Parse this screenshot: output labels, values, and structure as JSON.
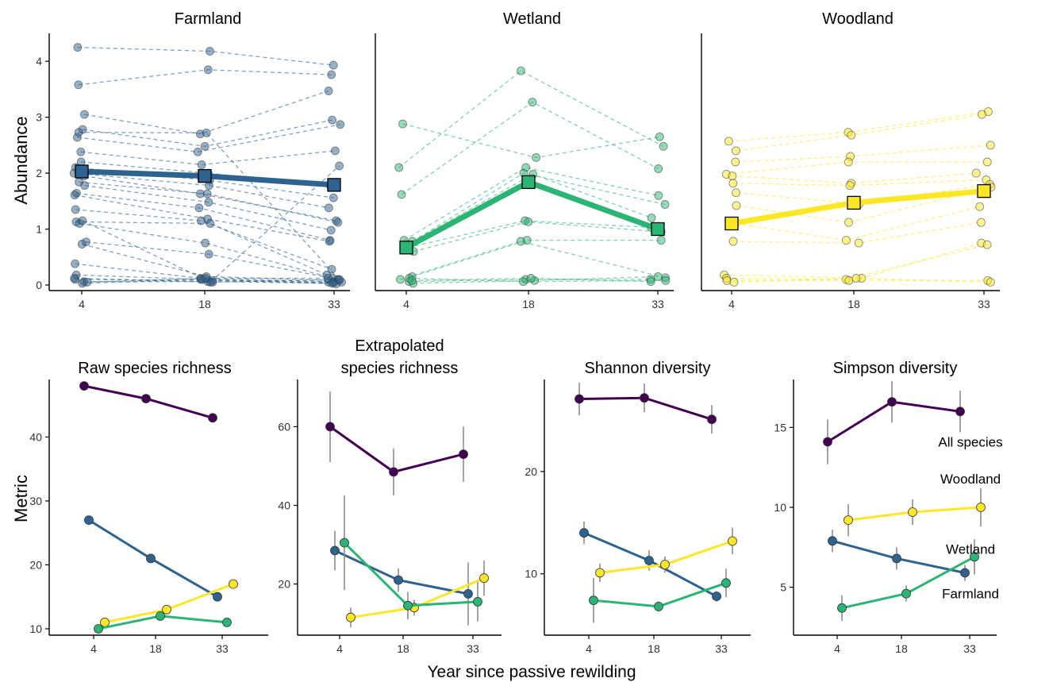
{
  "figure": {
    "top_ylabel": "Abundance",
    "bottom_ylabel": "Metric",
    "bottom_xlabel": "Year since passive rewilding"
  },
  "colors": {
    "Farmland": "#2e6390",
    "Wetland": "#2bb574",
    "Woodland": "#fde725",
    "All species": "#440154",
    "errorbar": "#8c8c8c",
    "axis": "#000000"
  },
  "chart_data": [
    {
      "type": "line",
      "panel": "abundance",
      "title": "Farmland",
      "habitat": "Farmland",
      "x": [
        "4",
        "18",
        "33"
      ],
      "ylim": [
        -0.1,
        4.5
      ],
      "yticks": [
        0,
        1,
        2,
        3,
        4
      ],
      "mean": [
        2.03,
        1.95,
        1.79
      ],
      "species": [
        [
          4.25,
          4.18,
          3.93
        ],
        [
          3.58,
          3.85,
          3.76
        ],
        [
          3.05,
          2.7,
          3.47
        ],
        [
          2.78,
          2.48,
          2.95
        ],
        [
          2.64,
          2.38,
          2.87
        ],
        [
          2.38,
          2.15,
          2.4
        ],
        [
          2.2,
          2.0,
          1.77
        ],
        [
          2.1,
          1.87,
          1.56
        ],
        [
          2.0,
          1.78,
          1.38
        ],
        [
          1.95,
          1.63,
          1.15
        ],
        [
          1.84,
          1.63,
          1.12
        ],
        [
          1.78,
          1.48,
          0.98
        ],
        [
          1.64,
          1.38,
          0.8
        ],
        [
          1.61,
          1.18,
          0.78
        ],
        [
          1.35,
          1.15,
          0.28
        ],
        [
          1.13,
          1.1,
          0.18
        ],
        [
          1.1,
          0.75,
          0.12
        ],
        [
          0.77,
          0.55,
          0.1
        ],
        [
          0.73,
          0.15,
          0.08
        ],
        [
          0.38,
          0.12,
          0.06
        ],
        [
          0.18,
          0.1,
          0.05
        ],
        [
          0.1,
          0.08,
          0.04
        ],
        [
          0.06,
          0.06,
          0.03
        ],
        [
          0.03,
          0.1,
          0.02
        ],
        [
          2.73,
          2.72,
          0.05
        ],
        [
          1.15,
          0.05,
          2.13
        ],
        [
          0.12,
          0.05,
          0.1
        ],
        [
          0.05,
          0.12,
          0.12
        ]
      ]
    },
    {
      "type": "line",
      "panel": "abundance",
      "title": "Wetland",
      "habitat": "Wetland",
      "x": [
        "4",
        "18",
        "33"
      ],
      "ylim": [
        -0.1,
        4.5
      ],
      "yticks": [
        0,
        1,
        2,
        3,
        4
      ],
      "mean": [
        0.67,
        1.84,
        1.0
      ],
      "species": [
        [
          2.88,
          2.28,
          2.65
        ],
        [
          2.1,
          3.83,
          2.48
        ],
        [
          1.62,
          3.27,
          2.08
        ],
        [
          0.8,
          2.1,
          1.6
        ],
        [
          0.78,
          2.0,
          1.44
        ],
        [
          0.72,
          1.98,
          1.2
        ],
        [
          0.67,
          1.15,
          1.03
        ],
        [
          0.6,
          1.13,
          0.95
        ],
        [
          0.15,
          0.8,
          0.8
        ],
        [
          0.1,
          0.78,
          0.13
        ],
        [
          0.06,
          0.1,
          0.1
        ],
        [
          0.03,
          0.08,
          0.15
        ],
        [
          0.12,
          0.06,
          0.08
        ],
        [
          0.08,
          0.12,
          0.06
        ]
      ]
    },
    {
      "type": "line",
      "panel": "abundance",
      "title": "Woodland",
      "habitat": "Woodland",
      "x": [
        "4",
        "18",
        "33"
      ],
      "ylim": [
        -0.1,
        4.5
      ],
      "yticks": [
        0,
        1,
        2,
        3,
        4
      ],
      "mean": [
        1.1,
        1.47,
        1.68
      ],
      "species": [
        [
          2.57,
          2.73,
          3.1
        ],
        [
          2.4,
          2.68,
          3.05
        ],
        [
          2.2,
          2.3,
          2.5
        ],
        [
          1.98,
          2.2,
          2.2
        ],
        [
          1.95,
          1.82,
          2.0
        ],
        [
          1.82,
          1.78,
          1.88
        ],
        [
          1.65,
          1.45,
          1.8
        ],
        [
          1.42,
          1.12,
          1.75
        ],
        [
          1.1,
          0.8,
          1.4
        ],
        [
          0.78,
          0.75,
          1.12
        ],
        [
          0.18,
          0.12,
          0.75
        ],
        [
          0.12,
          0.1,
          0.72
        ],
        [
          0.08,
          0.08,
          0.08
        ],
        [
          0.05,
          0.12,
          0.05
        ]
      ]
    },
    {
      "type": "line",
      "panel": "metric",
      "title": "Raw species richness",
      "x": [
        "4",
        "18",
        "33"
      ],
      "ylim": [
        9,
        49
      ],
      "yticks": [
        10,
        20,
        30,
        40
      ],
      "series": [
        {
          "group": "All species",
          "values": [
            48,
            46,
            43
          ],
          "err": [
            0,
            0,
            0
          ]
        },
        {
          "group": "Farmland",
          "values": [
            27,
            21,
            15
          ],
          "err": [
            0,
            0,
            0
          ]
        },
        {
          "group": "Woodland",
          "values": [
            11,
            13,
            17
          ],
          "err": [
            0,
            0,
            0
          ]
        },
        {
          "group": "Wetland",
          "values": [
            10,
            12,
            11
          ],
          "err": [
            0,
            0,
            0
          ]
        }
      ]
    },
    {
      "type": "line",
      "panel": "metric",
      "title": "Extrapolated\nspecies richness",
      "x": [
        "4",
        "18",
        "33"
      ],
      "ylim": [
        7,
        72
      ],
      "yticks": [
        20,
        40,
        60
      ],
      "series": [
        {
          "group": "All species",
          "values": [
            60,
            48.5,
            53
          ],
          "err": [
            9,
            6,
            7
          ]
        },
        {
          "group": "Farmland",
          "values": [
            28.5,
            21,
            17.5
          ],
          "err": [
            5,
            3,
            8
          ]
        },
        {
          "group": "Woodland",
          "values": [
            11.5,
            14,
            21.5
          ],
          "err": [
            2.5,
            2,
            4.5
          ]
        },
        {
          "group": "Wetland",
          "values": [
            30.5,
            14.5,
            15.5
          ],
          "err": [
            12,
            3.5,
            5
          ]
        }
      ]
    },
    {
      "type": "line",
      "panel": "metric",
      "title": "Shannon diversity",
      "x": [
        "4",
        "18",
        "33"
      ],
      "ylim": [
        4,
        29
      ],
      "yticks": [
        10,
        20
      ],
      "series": [
        {
          "group": "All species",
          "values": [
            27.1,
            27.2,
            25.1
          ],
          "err": [
            1.6,
            1.4,
            1.4
          ]
        },
        {
          "group": "Farmland",
          "values": [
            14,
            11.3,
            7.8
          ],
          "err": [
            1.1,
            1.0,
            0.5
          ]
        },
        {
          "group": "Woodland",
          "values": [
            10.1,
            10.9,
            13.2
          ],
          "err": [
            0.9,
            0.8,
            1.3
          ]
        },
        {
          "group": "Wetland",
          "values": [
            7.4,
            6.8,
            9.1
          ],
          "err": [
            2.2,
            0.5,
            1.4
          ]
        }
      ]
    },
    {
      "type": "line",
      "panel": "metric",
      "title": "Simpson diversity",
      "x": [
        "4",
        "18",
        "33"
      ],
      "ylim": [
        2,
        18
      ],
      "yticks": [
        5,
        10,
        15
      ],
      "series": [
        {
          "group": "All species",
          "values": [
            14.1,
            16.6,
            16.0
          ],
          "err": [
            1.4,
            1.3,
            1.3
          ]
        },
        {
          "group": "Woodland",
          "values": [
            9.2,
            9.7,
            10.0
          ],
          "err": [
            1.0,
            0.8,
            1.2
          ]
        },
        {
          "group": "Farmland",
          "values": [
            7.9,
            6.8,
            5.9
          ],
          "err": [
            0.7,
            0.7,
            0.5
          ]
        },
        {
          "group": "Wetland",
          "values": [
            3.7,
            4.6,
            6.9
          ],
          "err": [
            0.8,
            0.5,
            1.1
          ]
        }
      ],
      "labels": [
        {
          "text": "All species",
          "group": "All species",
          "xi": 2,
          "value": 14.1
        },
        {
          "text": "Woodland",
          "group": "Woodland",
          "xi": 2,
          "value": 11.8
        },
        {
          "text": "Wetland",
          "group": "Wetland",
          "xi": 2,
          "value": 7.4
        },
        {
          "text": "Farmland",
          "group": "Farmland",
          "xi": 2,
          "value": 4.6
        }
      ]
    }
  ]
}
